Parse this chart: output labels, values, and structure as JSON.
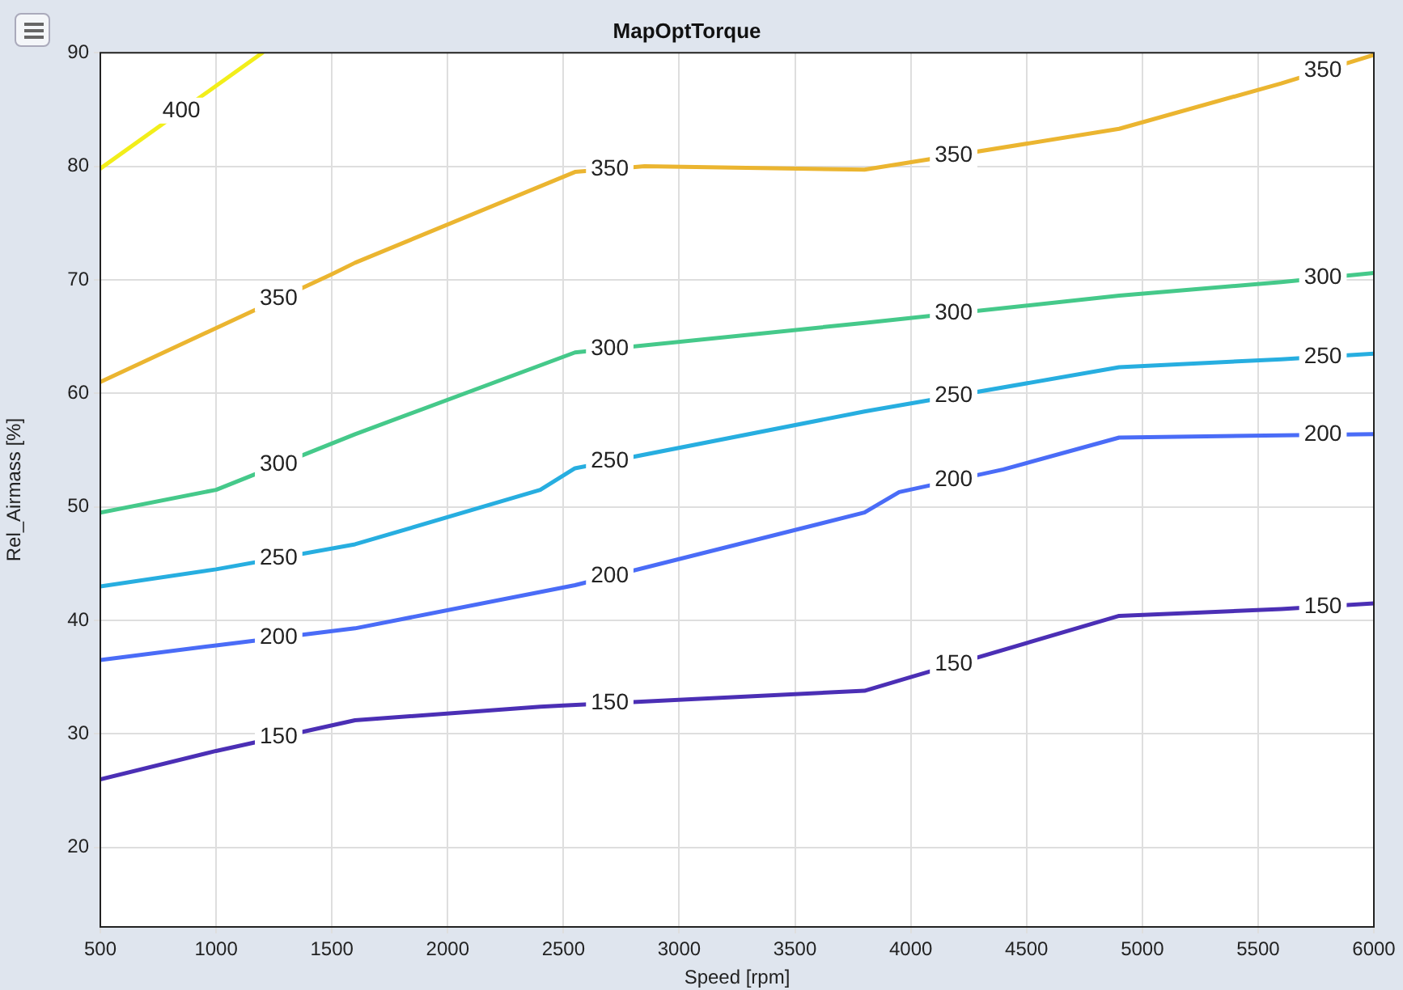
{
  "chart_data": {
    "type": "line",
    "title": "MapOptTorque",
    "xlabel": "Speed [rpm]",
    "ylabel": "Rel_Airmass [%]",
    "xlim": [
      500,
      6000
    ],
    "xticks": [
      500,
      1000,
      1500,
      2000,
      2500,
      3000,
      3500,
      4000,
      4500,
      5000,
      5500,
      6000
    ],
    "ylim": [
      13,
      90
    ],
    "yticks": [
      20,
      30,
      40,
      50,
      60,
      70,
      80,
      90
    ],
    "grid": true,
    "legend": false,
    "marker": "none",
    "line_style": "solid",
    "series": [
      {
        "name": "150",
        "color": "#4b2fb5",
        "x": [
          500,
          1000,
          1600,
          2400,
          2500,
          3800,
          4000,
          4900,
          5600,
          6000
        ],
        "values": [
          26,
          28.5,
          31.2,
          32.4,
          32.5,
          33.8,
          35,
          40.4,
          41,
          41.5
        ]
      },
      {
        "name": "200",
        "color": "#4a6cf7",
        "x": [
          500,
          1000,
          1600,
          2550,
          3800,
          3950,
          4400,
          4900,
          5600,
          6000
        ],
        "values": [
          36.5,
          37.8,
          39.3,
          43.1,
          49.5,
          51.3,
          53.3,
          56.1,
          56.3,
          56.4
        ]
      },
      {
        "name": "250",
        "color": "#27aee0",
        "x": [
          500,
          1000,
          1600,
          2400,
          2550,
          3800,
          4900,
          5600,
          6000
        ],
        "values": [
          43,
          44.5,
          46.7,
          51.5,
          53.4,
          58.4,
          62.3,
          63,
          63.5
        ]
      },
      {
        "name": "300",
        "color": "#45c98a",
        "x": [
          500,
          1000,
          1600,
          2550,
          3800,
          4900,
          5600,
          6000
        ],
        "values": [
          49.5,
          51.5,
          56.4,
          63.6,
          66.2,
          68.6,
          69.8,
          70.6
        ]
      },
      {
        "name": "350",
        "color": "#ebb530",
        "x": [
          500,
          1500,
          1600,
          2550,
          2850,
          3800,
          4900,
          5600,
          6000
        ],
        "values": [
          61,
          70.5,
          71.5,
          79.5,
          80,
          79.7,
          83.3,
          87.3,
          89.8
        ]
      },
      {
        "name": "400",
        "color": "#f2ee1a",
        "x": [
          500,
          1200
        ],
        "values": [
          79.8,
          90
        ]
      }
    ]
  }
}
